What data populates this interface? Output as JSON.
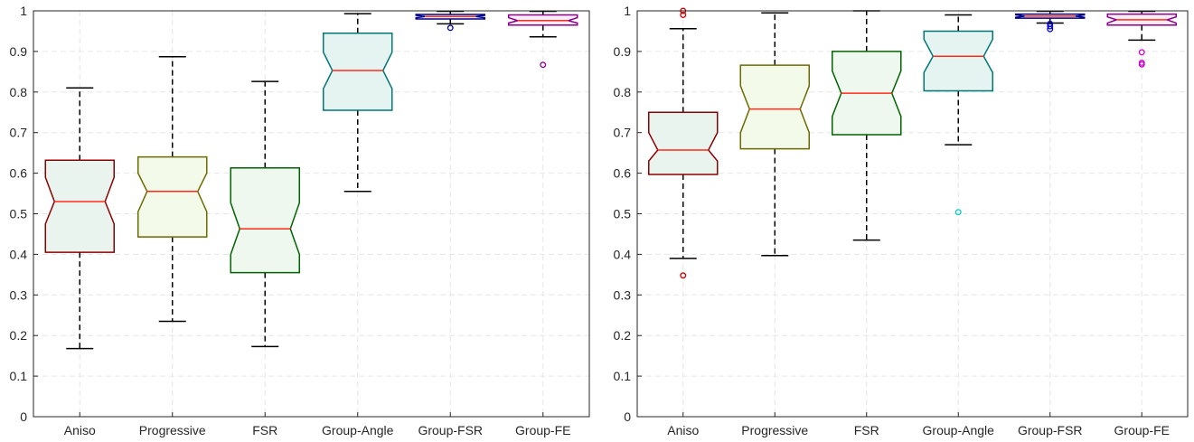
{
  "chart_data": [
    {
      "type": "boxplot",
      "panel": "left",
      "title": "",
      "xlabel": "",
      "ylabel": "",
      "ylim": [
        0,
        1
      ],
      "yticks": [
        "0",
        "0.1",
        "0.2",
        "0.3",
        "0.4",
        "0.5",
        "0.6",
        "0.7",
        "0.8",
        "0.9",
        "1"
      ],
      "grid": true,
      "notched": true,
      "categories": [
        "Aniso",
        "Progressive",
        "FSR",
        "Group-Angle",
        "Group-FSR",
        "Group-FE"
      ],
      "boxes": [
        {
          "name": "Aniso",
          "whisker_low": 0.168,
          "q1": 0.405,
          "median": 0.53,
          "q3": 0.632,
          "whisker_high": 0.81,
          "notch_low": 0.475,
          "notch_high": 0.59,
          "outliers": [],
          "edge_color": "#8b0000",
          "fill_color": "#eaf4ee"
        },
        {
          "name": "Progressive",
          "whisker_low": 0.235,
          "q1": 0.443,
          "median": 0.555,
          "q3": 0.64,
          "whisker_high": 0.887,
          "notch_low": 0.505,
          "notch_high": 0.6,
          "outliers": [],
          "edge_color": "#6b6b00",
          "fill_color": "#f4faea"
        },
        {
          "name": "FSR",
          "whisker_low": 0.173,
          "q1": 0.355,
          "median": 0.463,
          "q3": 0.613,
          "whisker_high": 0.826,
          "notch_low": 0.4,
          "notch_high": 0.527,
          "outliers": [],
          "edge_color": "#006400",
          "fill_color": "#eef8ee"
        },
        {
          "name": "Group-Angle",
          "whisker_low": 0.555,
          "q1": 0.755,
          "median": 0.853,
          "q3": 0.945,
          "whisker_high": 0.993,
          "notch_low": 0.808,
          "notch_high": 0.898,
          "outliers": [],
          "edge_color": "#007777",
          "fill_color": "#e6f4f1"
        },
        {
          "name": "Group-FSR",
          "whisker_low": 0.968,
          "q1": 0.98,
          "median": 0.986,
          "q3": 0.991,
          "whisker_high": 0.999,
          "notch_low": 0.983,
          "notch_high": 0.989,
          "outliers": [
            0.958
          ],
          "edge_color": "#00008b",
          "fill_color": "#eef0fa"
        },
        {
          "name": "Group-FE",
          "whisker_low": 0.936,
          "q1": 0.965,
          "median": 0.976,
          "q3": 0.99,
          "whisker_high": 0.999,
          "notch_low": 0.97,
          "notch_high": 0.983,
          "outliers": [
            0.867
          ],
          "edge_color": "#8b008b",
          "fill_color": "#f6eef6"
        }
      ]
    },
    {
      "type": "boxplot",
      "panel": "right",
      "title": "",
      "xlabel": "",
      "ylabel": "",
      "ylim": [
        0,
        1
      ],
      "yticks": [
        "0",
        "0.1",
        "0.2",
        "0.3",
        "0.4",
        "0.5",
        "0.6",
        "0.7",
        "0.8",
        "0.9",
        "1"
      ],
      "grid": true,
      "notched": true,
      "categories": [
        "Aniso",
        "Progressive",
        "FSR",
        "Group-Angle",
        "Group-FSR",
        "Group-FE"
      ],
      "boxes": [
        {
          "name": "Aniso",
          "whisker_low": 0.39,
          "q1": 0.597,
          "median": 0.657,
          "q3": 0.75,
          "whisker_high": 0.956,
          "notch_low": 0.63,
          "notch_high": 0.7,
          "outliers": [
            0.348,
            0.99,
            1.0
          ],
          "outlier_color": "#cc0000",
          "edge_color": "#8b0000",
          "fill_color": "#eaf4ee"
        },
        {
          "name": "Progressive",
          "whisker_low": 0.397,
          "q1": 0.66,
          "median": 0.758,
          "q3": 0.866,
          "whisker_high": 0.995,
          "notch_low": 0.7,
          "notch_high": 0.815,
          "outliers": [],
          "edge_color": "#6b6b00",
          "fill_color": "#f4faea"
        },
        {
          "name": "FSR",
          "whisker_low": 0.435,
          "q1": 0.695,
          "median": 0.797,
          "q3": 0.9,
          "whisker_high": 1.0,
          "notch_low": 0.74,
          "notch_high": 0.852,
          "outliers": [],
          "edge_color": "#006400",
          "fill_color": "#eef8ee"
        },
        {
          "name": "Group-Angle",
          "whisker_low": 0.67,
          "q1": 0.803,
          "median": 0.888,
          "q3": 0.95,
          "whisker_high": 0.99,
          "notch_low": 0.848,
          "notch_high": 0.93,
          "outliers": [
            0.504
          ],
          "outlier_color": "#00cccc",
          "edge_color": "#007777",
          "fill_color": "#e6f4f1"
        },
        {
          "name": "Group-FSR",
          "whisker_low": 0.97,
          "q1": 0.982,
          "median": 0.987,
          "q3": 0.992,
          "whisker_high": 0.999,
          "notch_low": 0.984,
          "notch_high": 0.99,
          "outliers": [
            0.955,
            0.962,
            0.968
          ],
          "outlier_color": "#0000cc",
          "edge_color": "#00008b",
          "fill_color": "#eef0fa"
        },
        {
          "name": "Group-FE",
          "whisker_low": 0.928,
          "q1": 0.965,
          "median": 0.978,
          "q3": 0.992,
          "whisker_high": 0.999,
          "notch_low": 0.97,
          "notch_high": 0.985,
          "outliers": [
            0.868,
            0.872,
            0.898
          ],
          "outlier_color": "#cc00cc",
          "edge_color": "#8b008b",
          "fill_color": "#f6eef6"
        }
      ]
    }
  ],
  "colors": {
    "median_line": "#ff2a1a",
    "whisker": "#000000",
    "grid": "#e6e6e6",
    "axis": "#262626"
  }
}
